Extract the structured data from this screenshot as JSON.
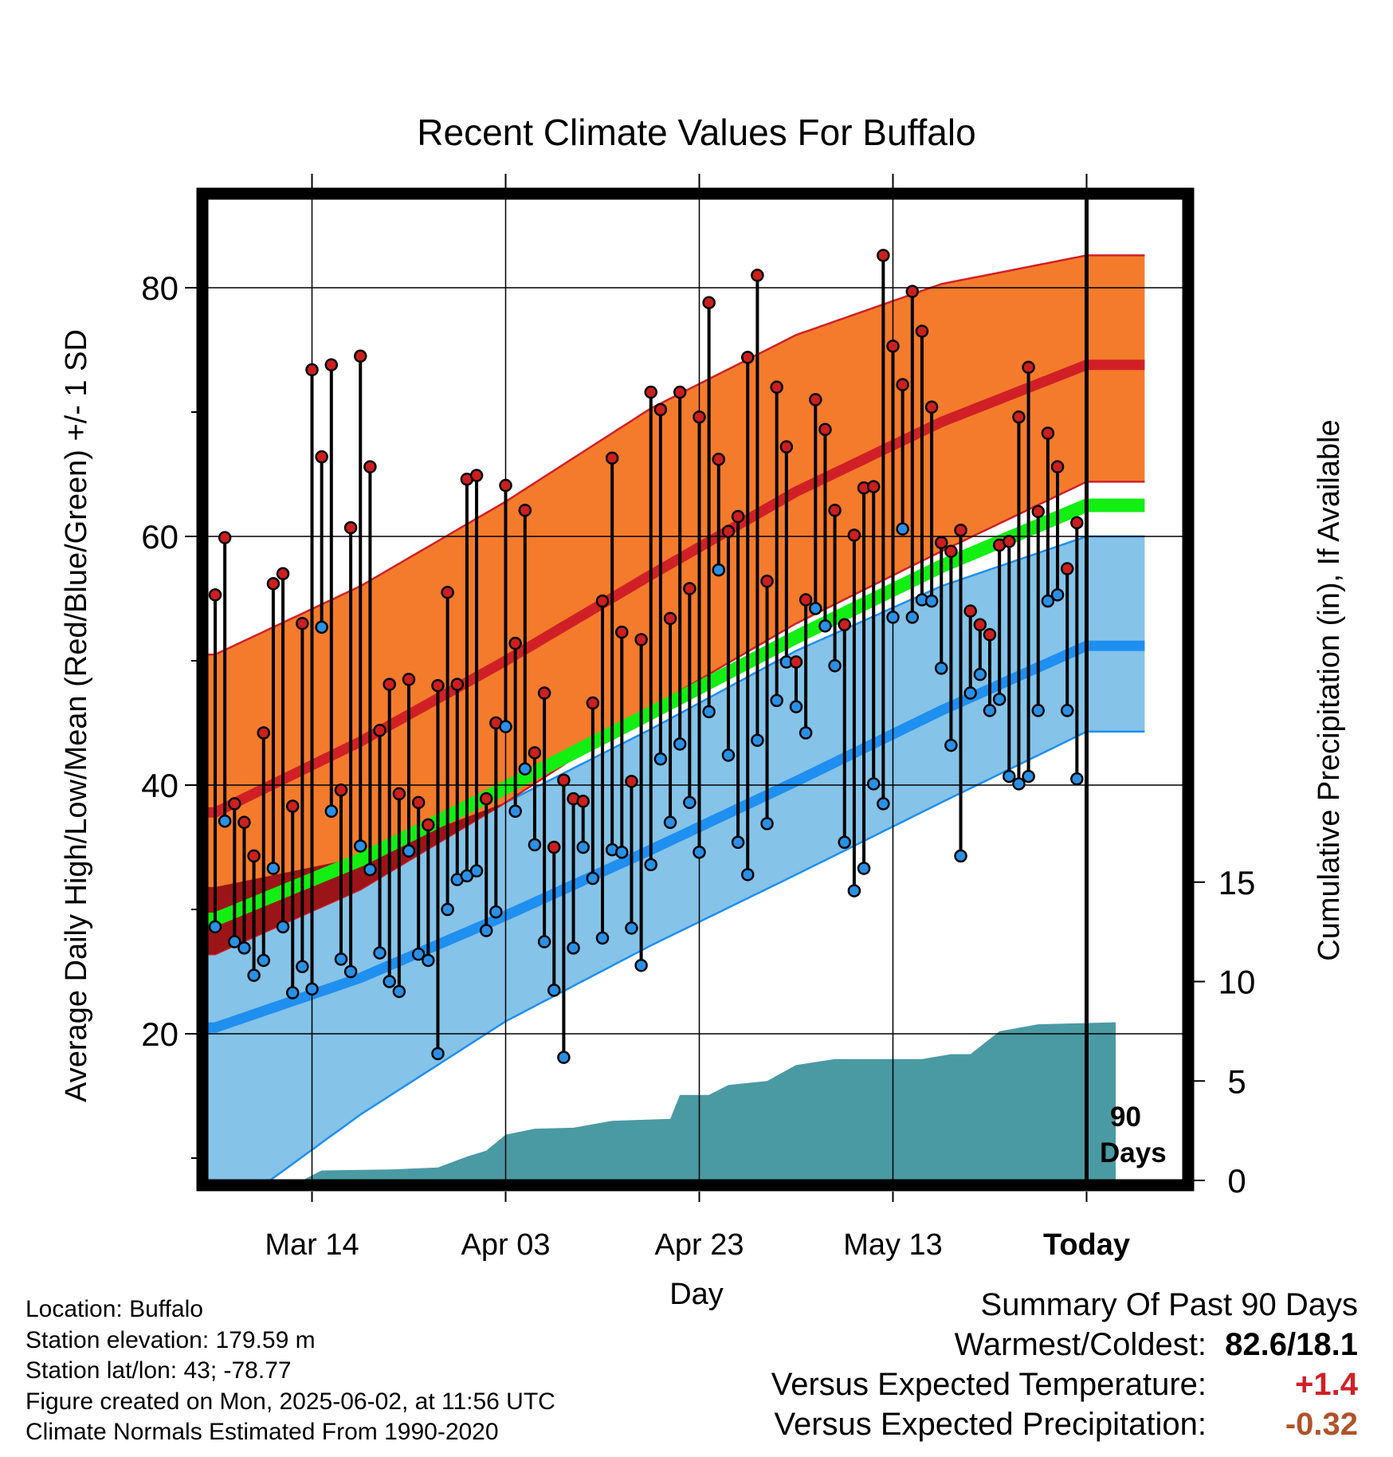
{
  "chart_data": {
    "type": "line",
    "title": "Recent Climate Values For Buffalo",
    "xlabel": "Day",
    "ylabel": "Average Daily High/Low/Mean (Red/Blue/Green) +/- 1 SD",
    "y2label": "Cumulative Precipitation (in), If Available",
    "x_range": [
      "2025-03-04",
      "2025-06-02"
    ],
    "x_tick_labels": [
      "Mar 14",
      "Apr 03",
      "Apr 23",
      "May 13",
      "Today"
    ],
    "x_tick_dates": [
      "2025-03-14",
      "2025-04-03",
      "2025-04-23",
      "2025-05-13",
      "2025-06-02"
    ],
    "ylim": [
      4,
      88
    ],
    "y_ticks": [
      20,
      40,
      60,
      80
    ],
    "y2_ticks": [
      0,
      5,
      10,
      15
    ],
    "grid": true,
    "today_label": "90 Days",
    "normal_high": {
      "x": [
        "2025-03-04",
        "2025-03-19",
        "2025-04-03",
        "2025-04-18",
        "2025-05-03",
        "2025-05-18",
        "2025-06-02"
      ],
      "mean": [
        37.8,
        43.5,
        50.0,
        56.9,
        63.6,
        69.2,
        73.8
      ],
      "upper": [
        50.5,
        56.0,
        62.8,
        70.3,
        76.2,
        80.3,
        82.6
      ],
      "lower": [
        26.4,
        31.6,
        38.6,
        46.2,
        53.0,
        58.8,
        64.4
      ]
    },
    "normal_low": {
      "x": [
        "2025-03-04",
        "2025-03-19",
        "2025-04-03",
        "2025-04-18",
        "2025-05-03",
        "2025-05-18",
        "2025-06-02"
      ],
      "mean": [
        20.5,
        24.5,
        29.5,
        34.8,
        40.3,
        46.0,
        51.2
      ],
      "upper": [
        31.8,
        34.2,
        38.6,
        44.5,
        50.8,
        56.0,
        60.0
      ],
      "lower": [
        5.0,
        13.5,
        21.0,
        27.1,
        32.8,
        38.6,
        44.3
      ]
    },
    "normal_mean": {
      "x": [
        "2025-03-04",
        "2025-03-19",
        "2025-04-03",
        "2025-04-18",
        "2025-05-03",
        "2025-05-18",
        "2025-06-02"
      ],
      "values": [
        29.2,
        34.0,
        39.8,
        45.8,
        51.9,
        57.6,
        62.5
      ]
    },
    "daily_high": [
      55.3,
      59.9,
      38.5,
      37.0,
      34.3,
      44.2,
      56.2,
      57.0,
      38.3,
      53.0,
      73.4,
      66.4,
      73.8,
      39.6,
      60.7,
      74.5,
      65.6,
      44.4,
      48.1,
      39.3,
      48.5,
      38.6,
      36.8,
      48.0,
      55.5,
      48.1,
      64.6,
      64.9,
      38.9,
      45.0,
      64.1,
      51.4,
      62.1,
      42.6,
      47.4,
      35.0,
      40.4,
      38.9,
      38.7,
      46.6,
      54.8,
      66.3,
      52.3,
      40.3,
      51.7,
      71.6,
      70.2,
      53.4,
      71.6,
      55.8,
      69.6,
      78.8,
      66.2,
      60.4,
      61.6,
      74.4,
      81.0,
      56.4,
      72.0,
      67.2,
      49.9,
      54.9,
      71.0,
      68.6,
      62.1,
      52.9,
      60.1,
      63.9,
      64.0,
      82.6,
      75.3,
      72.2,
      79.7,
      76.5,
      70.4,
      59.5,
      58.8,
      60.5,
      54.0,
      52.9,
      52.1,
      59.3,
      59.6,
      69.6,
      73.6,
      62.0,
      68.3,
      65.6,
      57.4,
      61.1
    ],
    "daily_low": [
      28.6,
      37.1,
      27.4,
      26.9,
      24.7,
      25.9,
      33.3,
      28.6,
      23.3,
      25.4,
      23.6,
      52.7,
      37.9,
      26.0,
      25.0,
      35.1,
      33.2,
      26.5,
      24.2,
      23.4,
      34.7,
      26.4,
      25.9,
      18.4,
      30.0,
      32.4,
      32.7,
      33.1,
      28.3,
      29.8,
      44.7,
      37.9,
      41.3,
      35.2,
      27.4,
      23.5,
      18.1,
      26.9,
      35.0,
      32.5,
      27.7,
      34.8,
      34.6,
      28.5,
      25.5,
      33.6,
      42.1,
      37.0,
      43.3,
      38.6,
      34.6,
      45.9,
      57.3,
      42.4,
      35.4,
      32.8,
      43.6,
      36.9,
      46.8,
      49.9,
      46.3,
      44.2,
      54.2,
      52.8,
      49.6,
      35.4,
      31.5,
      33.3,
      40.1,
      38.5,
      53.5,
      60.6,
      53.5,
      54.9,
      54.8,
      49.4,
      43.2,
      34.3,
      47.4,
      48.9,
      46.0,
      46.9,
      40.7,
      40.1,
      40.7,
      46.0,
      54.8,
      55.3,
      46.0,
      40.5
    ],
    "cumulative_precip": {
      "x": [
        "2025-03-04",
        "2025-03-13",
        "2025-03-15",
        "2025-03-22",
        "2025-03-27",
        "2025-03-30",
        "2025-04-01",
        "2025-04-03",
        "2025-04-06",
        "2025-04-10",
        "2025-04-14",
        "2025-04-20",
        "2025-04-21",
        "2025-04-24",
        "2025-04-26",
        "2025-04-30",
        "2025-05-03",
        "2025-05-07",
        "2025-05-16",
        "2025-05-19",
        "2025-05-21",
        "2025-05-24",
        "2025-05-28",
        "2025-06-05"
      ],
      "values": [
        0.0,
        0.0,
        0.5,
        0.55,
        0.65,
        1.2,
        1.5,
        2.3,
        2.6,
        2.65,
        3.0,
        3.1,
        4.3,
        4.3,
        4.8,
        5.0,
        5.8,
        6.1,
        6.1,
        6.35,
        6.35,
        7.5,
        7.85,
        7.95
      ]
    },
    "colors": {
      "high_band": "#f47b2c",
      "high_mean": "#d02026",
      "low_band": "#85c3e8",
      "low_mean": "#1f8ff0",
      "mean_line": "#13ee13",
      "overlap": "#9b1418",
      "precip": "#4a9aa3",
      "high_dot": "#cc1f1f",
      "low_dot": "#2a90e6"
    }
  },
  "footer": {
    "location": "Location: Buffalo",
    "elevation": "Station elevation: 179.59 m",
    "latlon": "Station lat/lon: 43; -78.77",
    "created": "Figure created on Mon, 2025-06-02, at 11:56 UTC",
    "normals": "Climate Normals Estimated From 1990-2020"
  },
  "summary": {
    "heading": "Summary Of Past 90 Days",
    "warm_cold_label": "Warmest/Coldest:",
    "warm_cold_value": "82.6/18.1",
    "temp_label": "Versus Expected Temperature:",
    "temp_value": "+1.4",
    "temp_color": "#d02026",
    "precip_label": "Versus Expected Precipitation:",
    "precip_value": "-0.32",
    "precip_color": "#b0522a"
  }
}
